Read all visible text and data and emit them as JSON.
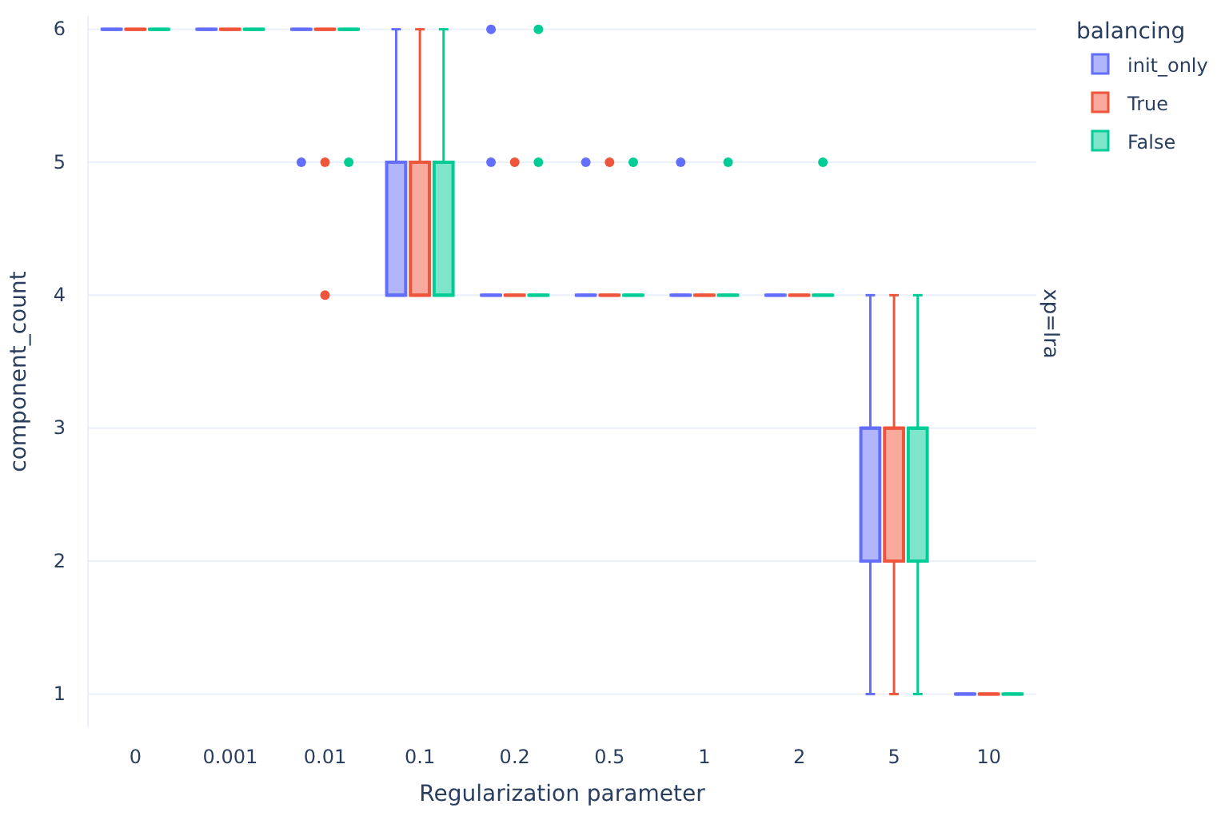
{
  "chart_data": {
    "type": "box",
    "xlabel": "Regularization parameter",
    "ylabel": "component_count",
    "legend_title": "balancing",
    "legend": "top right",
    "grid": "y",
    "annotations": [
      "xp=lra"
    ],
    "categories": [
      "0",
      "0.001",
      "0.01",
      "0.1",
      "0.2",
      "0.5",
      "1",
      "2",
      "5",
      "10"
    ],
    "ylim": [
      0.75,
      6.1
    ],
    "yticks": [
      1,
      2,
      3,
      4,
      5,
      6
    ],
    "series": [
      {
        "name": "init_only",
        "color": "#636efa",
        "boxes": [
          {
            "low": 6,
            "q1": 6,
            "median": 6,
            "q3": 6,
            "high": 6
          },
          {
            "low": 6,
            "q1": 6,
            "median": 6,
            "q3": 6,
            "high": 6
          },
          {
            "low": 6,
            "q1": 6,
            "median": 6,
            "q3": 6,
            "high": 6,
            "outliers": [
              5
            ]
          },
          {
            "low": 4,
            "q1": 4,
            "median": 4,
            "q3": 5,
            "high": 6
          },
          {
            "low": 4,
            "q1": 4,
            "median": 4,
            "q3": 4,
            "high": 4,
            "outliers": [
              6,
              5
            ]
          },
          {
            "low": 4,
            "q1": 4,
            "median": 4,
            "q3": 4,
            "high": 4,
            "outliers": [
              5
            ]
          },
          {
            "low": 4,
            "q1": 4,
            "median": 4,
            "q3": 4,
            "high": 4,
            "outliers": [
              5
            ]
          },
          {
            "low": 4,
            "q1": 4,
            "median": 4,
            "q3": 4,
            "high": 4
          },
          {
            "low": 1,
            "q1": 2,
            "median": 3,
            "q3": 3,
            "high": 4
          },
          {
            "low": 1,
            "q1": 1,
            "median": 1,
            "q3": 1,
            "high": 1
          }
        ]
      },
      {
        "name": "True",
        "color": "#ef553b",
        "boxes": [
          {
            "low": 6,
            "q1": 6,
            "median": 6,
            "q3": 6,
            "high": 6
          },
          {
            "low": 6,
            "q1": 6,
            "median": 6,
            "q3": 6,
            "high": 6
          },
          {
            "low": 6,
            "q1": 6,
            "median": 6,
            "q3": 6,
            "high": 6,
            "outliers": [
              5,
              4
            ]
          },
          {
            "low": 4,
            "q1": 4,
            "median": 4,
            "q3": 5,
            "high": 6
          },
          {
            "low": 4,
            "q1": 4,
            "median": 4,
            "q3": 4,
            "high": 4,
            "outliers": [
              5
            ]
          },
          {
            "low": 4,
            "q1": 4,
            "median": 4,
            "q3": 4,
            "high": 4,
            "outliers": [
              5
            ]
          },
          {
            "low": 4,
            "q1": 4,
            "median": 4,
            "q3": 4,
            "high": 4
          },
          {
            "low": 4,
            "q1": 4,
            "median": 4,
            "q3": 4,
            "high": 4
          },
          {
            "low": 1,
            "q1": 2,
            "median": 3,
            "q3": 3,
            "high": 4
          },
          {
            "low": 1,
            "q1": 1,
            "median": 1,
            "q3": 1,
            "high": 1
          }
        ]
      },
      {
        "name": "False",
        "color": "#00cc96",
        "boxes": [
          {
            "low": 6,
            "q1": 6,
            "median": 6,
            "q3": 6,
            "high": 6
          },
          {
            "low": 6,
            "q1": 6,
            "median": 6,
            "q3": 6,
            "high": 6
          },
          {
            "low": 6,
            "q1": 6,
            "median": 6,
            "q3": 6,
            "high": 6,
            "outliers": [
              5
            ]
          },
          {
            "low": 4,
            "q1": 4,
            "median": 4,
            "q3": 5,
            "high": 6
          },
          {
            "low": 4,
            "q1": 4,
            "median": 4,
            "q3": 4,
            "high": 4,
            "outliers": [
              6,
              5
            ]
          },
          {
            "low": 4,
            "q1": 4,
            "median": 4,
            "q3": 4,
            "high": 4,
            "outliers": [
              5
            ]
          },
          {
            "low": 4,
            "q1": 4,
            "median": 4,
            "q3": 4,
            "high": 4,
            "outliers": [
              5
            ]
          },
          {
            "low": 4,
            "q1": 4,
            "median": 4,
            "q3": 4,
            "high": 4,
            "outliers": [
              5
            ]
          },
          {
            "low": 1,
            "q1": 2,
            "median": 3,
            "q3": 3,
            "high": 4
          },
          {
            "low": 1,
            "q1": 1,
            "median": 1,
            "q3": 1,
            "high": 1
          }
        ]
      }
    ]
  }
}
